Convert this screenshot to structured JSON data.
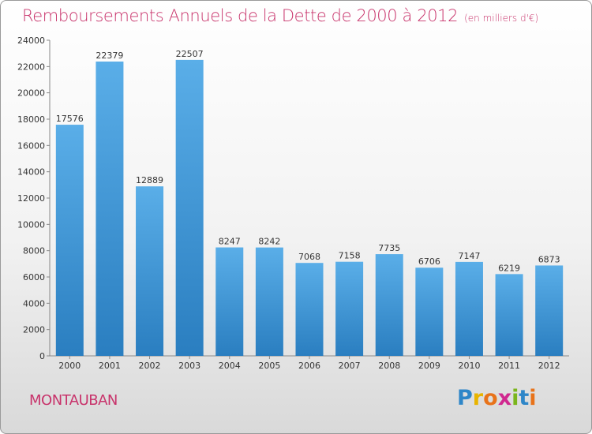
{
  "header": {
    "title": "Remboursements Annuels de la Dette de 2000 à 2012",
    "unit": "(en milliers d'€)"
  },
  "footer": {
    "city": "MONTAUBAN",
    "logo_letters": [
      "P",
      "r",
      "o",
      "x",
      "i",
      "t",
      "i"
    ],
    "logo_colors": [
      "#2e86c8",
      "#e8b400",
      "#e8731a",
      "#d0288f",
      "#7bb51c",
      "#2e86c8",
      "#e8731a"
    ]
  },
  "chart_data": {
    "type": "bar",
    "title": "Remboursements Annuels de la Dette de 2000 à 2012",
    "subtitle": "(en milliers d'€)",
    "categories": [
      "2000",
      "2001",
      "2002",
      "2003",
      "2004",
      "2005",
      "2006",
      "2007",
      "2008",
      "2009",
      "2010",
      "2011",
      "2012"
    ],
    "values": [
      17576,
      22379,
      12889,
      22507,
      8247,
      8242,
      7068,
      7158,
      7735,
      6706,
      7147,
      6219,
      6873
    ],
    "data_labels": [
      "17576",
      "22379",
      "12889",
      "22507",
      "8247",
      "8242",
      "7068",
      "7158",
      "7735",
      "6706",
      "7147",
      "6219",
      "6873"
    ],
    "y_ticks": [
      "0",
      "2000",
      "4000",
      "6000",
      "8000",
      "10000",
      "12000",
      "14000",
      "16000",
      "18000",
      "20000",
      "22000",
      "24000"
    ],
    "ylim": [
      0,
      24000
    ],
    "grid": false,
    "bar_color_top": "#5aaee8",
    "bar_color_bottom": "#2a7ec0"
  }
}
